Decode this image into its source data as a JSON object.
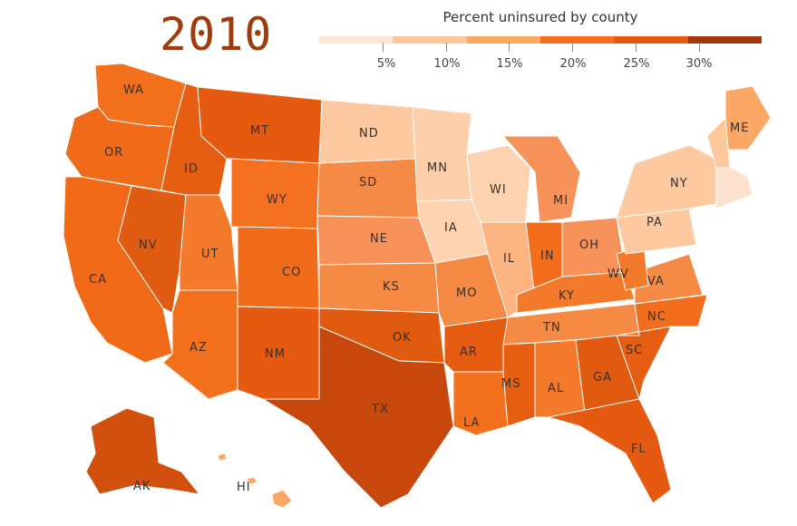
{
  "year": "2010",
  "legend": {
    "title": "Percent uninsured by county",
    "colors": [
      "#fde6d6",
      "#fdc79a",
      "#fda761",
      "#f56f1c",
      "#e45a10",
      "#a3390a"
    ],
    "ticks": [
      "5%",
      "10%",
      "15%",
      "20%",
      "25%",
      "30%"
    ]
  },
  "state_labels": {
    "WA": "WA",
    "OR": "OR",
    "CA": "CA",
    "ID": "ID",
    "MT": "MT",
    "NV": "NV",
    "UT": "UT",
    "WY": "WY",
    "CO": "CO",
    "AZ": "AZ",
    "NM": "NM",
    "ND": "ND",
    "SD": "SD",
    "NE": "NE",
    "KS": "KS",
    "OK": "OK",
    "TX": "TX",
    "MN": "MN",
    "IA": "IA",
    "MO": "MO",
    "AR": "AR",
    "LA": "LA",
    "WI": "WI",
    "IL": "IL",
    "MI": "MI",
    "IN": "IN",
    "OH": "OH",
    "KY": "KY",
    "TN": "TN",
    "MS": "MS",
    "AL": "AL",
    "GA": "GA",
    "FL": "FL",
    "SC": "SC",
    "NC": "NC",
    "VA": "VA",
    "WV": "WV",
    "PA": "PA",
    "NY": "NY",
    "ME": "ME",
    "AK": "AK",
    "HI": "HI"
  }
}
